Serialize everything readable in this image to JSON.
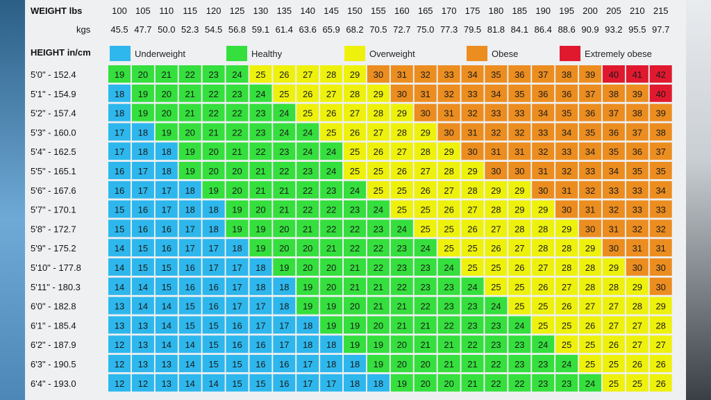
{
  "chart_data": {
    "type": "heatmap",
    "weight_header": "WEIGHT lbs",
    "kgs_header": "kgs",
    "height_header": "HEIGHT in/cm",
    "weights_lbs": [
      "100",
      "105",
      "110",
      "115",
      "120",
      "125",
      "130",
      "135",
      "140",
      "145",
      "150",
      "155",
      "160",
      "165",
      "170",
      "175",
      "180",
      "185",
      "190",
      "195",
      "200",
      "205",
      "210",
      "215"
    ],
    "weights_kgs": [
      "45.5",
      "47.7",
      "50.0",
      "52.3",
      "54.5",
      "56.8",
      "59.1",
      "61.4",
      "63.6",
      "65.9",
      "68.2",
      "70.5",
      "72.7",
      "75.0",
      "77.3",
      "79.5",
      "81.8",
      "84.1",
      "86.4",
      "88.6",
      "90.9",
      "93.2",
      "95.5",
      "97.7"
    ],
    "heights": [
      "5'0\" - 152.4",
      "5'1\" - 154.9",
      "5'2\" - 157.4",
      "5'3\" - 160.0",
      "5'4\" - 162.5",
      "5'5\" - 165.1",
      "5'6\" - 167.6",
      "5'7\" - 170.1",
      "5'8\" - 172.7",
      "5'9\" - 175.2",
      "5'10\" - 177.8",
      "5'11\" - 180.3",
      "6'0\" - 182.8",
      "6'1\" - 185.4",
      "6'2\" - 187.9",
      "6'3\" - 190.5",
      "6'4\" - 193.0"
    ],
    "values": [
      [
        19,
        20,
        21,
        22,
        23,
        24,
        25,
        26,
        27,
        28,
        29,
        30,
        31,
        32,
        33,
        34,
        35,
        36,
        37,
        38,
        39,
        40,
        41,
        42
      ],
      [
        18,
        19,
        20,
        21,
        22,
        23,
        24,
        25,
        26,
        27,
        28,
        29,
        30,
        31,
        32,
        33,
        34,
        35,
        36,
        36,
        37,
        38,
        39,
        40
      ],
      [
        18,
        19,
        20,
        21,
        22,
        22,
        23,
        24,
        25,
        26,
        27,
        28,
        29,
        30,
        31,
        32,
        33,
        33,
        34,
        35,
        36,
        37,
        38,
        39
      ],
      [
        17,
        18,
        19,
        20,
        21,
        22,
        23,
        24,
        24,
        25,
        26,
        27,
        28,
        29,
        30,
        31,
        32,
        32,
        33,
        34,
        35,
        36,
        37,
        38
      ],
      [
        17,
        18,
        18,
        19,
        20,
        21,
        22,
        23,
        24,
        24,
        25,
        26,
        27,
        28,
        29,
        30,
        31,
        31,
        32,
        33,
        34,
        35,
        36,
        37
      ],
      [
        16,
        17,
        18,
        19,
        20,
        20,
        21,
        22,
        23,
        24,
        25,
        25,
        26,
        27,
        28,
        29,
        30,
        30,
        31,
        32,
        33,
        34,
        35,
        35
      ],
      [
        16,
        17,
        17,
        18,
        19,
        20,
        21,
        21,
        22,
        23,
        24,
        25,
        25,
        26,
        27,
        28,
        29,
        29,
        30,
        31,
        32,
        33,
        33,
        34
      ],
      [
        15,
        16,
        17,
        18,
        18,
        19,
        20,
        21,
        22,
        22,
        23,
        24,
        25,
        25,
        26,
        27,
        28,
        29,
        29,
        30,
        31,
        32,
        33,
        33
      ],
      [
        15,
        16,
        16,
        17,
        18,
        19,
        19,
        20,
        21,
        22,
        22,
        23,
        24,
        25,
        25,
        26,
        27,
        28,
        28,
        29,
        30,
        31,
        32,
        32
      ],
      [
        14,
        15,
        16,
        17,
        17,
        18,
        19,
        20,
        20,
        21,
        22,
        22,
        23,
        24,
        25,
        25,
        26,
        27,
        28,
        28,
        29,
        30,
        31,
        31
      ],
      [
        14,
        15,
        15,
        16,
        17,
        17,
        18,
        19,
        20,
        20,
        21,
        22,
        23,
        23,
        24,
        25,
        25,
        26,
        27,
        28,
        28,
        29,
        30,
        30
      ],
      [
        14,
        14,
        15,
        16,
        16,
        17,
        18,
        18,
        19,
        20,
        21,
        21,
        22,
        23,
        23,
        24,
        25,
        25,
        26,
        27,
        28,
        28,
        29,
        30
      ],
      [
        13,
        14,
        14,
        15,
        16,
        17,
        17,
        18,
        19,
        19,
        20,
        21,
        21,
        22,
        23,
        23,
        24,
        25,
        25,
        26,
        27,
        27,
        28,
        29
      ],
      [
        13,
        13,
        14,
        15,
        15,
        16,
        17,
        17,
        18,
        19,
        19,
        20,
        21,
        21,
        22,
        23,
        23,
        24,
        25,
        25,
        26,
        27,
        27,
        28
      ],
      [
        12,
        13,
        14,
        14,
        15,
        16,
        16,
        17,
        18,
        18,
        19,
        19,
        20,
        21,
        21,
        22,
        23,
        23,
        24,
        25,
        25,
        26,
        27,
        27
      ],
      [
        12,
        13,
        13,
        14,
        15,
        15,
        16,
        16,
        17,
        18,
        18,
        19,
        20,
        20,
        21,
        21,
        22,
        23,
        23,
        24,
        25,
        25,
        26,
        26
      ],
      [
        12,
        12,
        13,
        14,
        14,
        15,
        15,
        16,
        17,
        17,
        18,
        18,
        19,
        20,
        20,
        21,
        22,
        22,
        23,
        23,
        24,
        25,
        25,
        26
      ]
    ],
    "legend": [
      {
        "label": "Underweight",
        "color": "#2eb7ec"
      },
      {
        "label": "Healthy",
        "color": "#35df3d"
      },
      {
        "label": "Overweight",
        "color": "#eef10c"
      },
      {
        "label": "Obese",
        "color": "#ec8d20"
      },
      {
        "label": "Extremely obese",
        "color": "#e0192f"
      }
    ]
  }
}
